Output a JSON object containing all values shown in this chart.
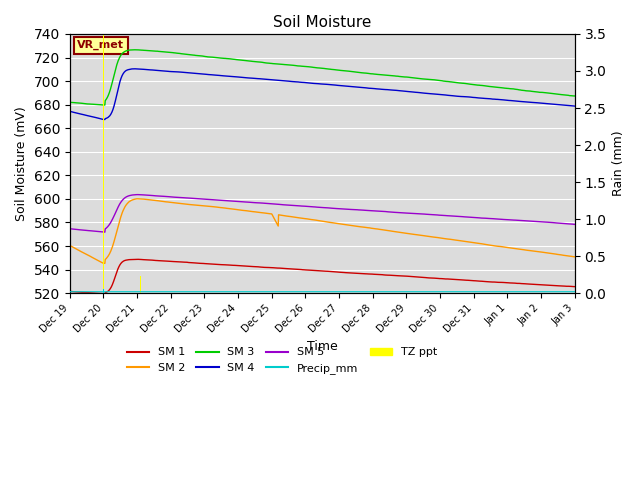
{
  "title": "Soil Moisture",
  "xlabel": "Time",
  "ylabel_left": "Soil Moisture (mV)",
  "ylabel_right": "Rain (mm)",
  "ylim_left": [
    520,
    740
  ],
  "ylim_right": [
    0.0,
    3.5
  ],
  "background_color": "#dcdcdc",
  "annotation_text": "VR_met",
  "annotation_color": "#8B0000",
  "annotation_bg": "#ffff99",
  "annotation_border": "#8B0000",
  "series_colors": {
    "SM1": "#cc0000",
    "SM2": "#ff9900",
    "SM3": "#00cc00",
    "SM4": "#0000cc",
    "SM5": "#9900cc",
    "Precip_mm": "#00cccc",
    "TZ_ppt": "#ffff00"
  },
  "xtick_labels": [
    "Dec 19",
    "Dec 20",
    "Dec 21",
    "Dec 22",
    "Dec 23",
    "Dec 24",
    "Dec 25",
    "Dec 26",
    "Dec 27",
    "Dec 28",
    "Dec 29",
    "Dec 30",
    "Dec 31",
    "Jan 1",
    "Jan 2",
    "Jan 3"
  ]
}
